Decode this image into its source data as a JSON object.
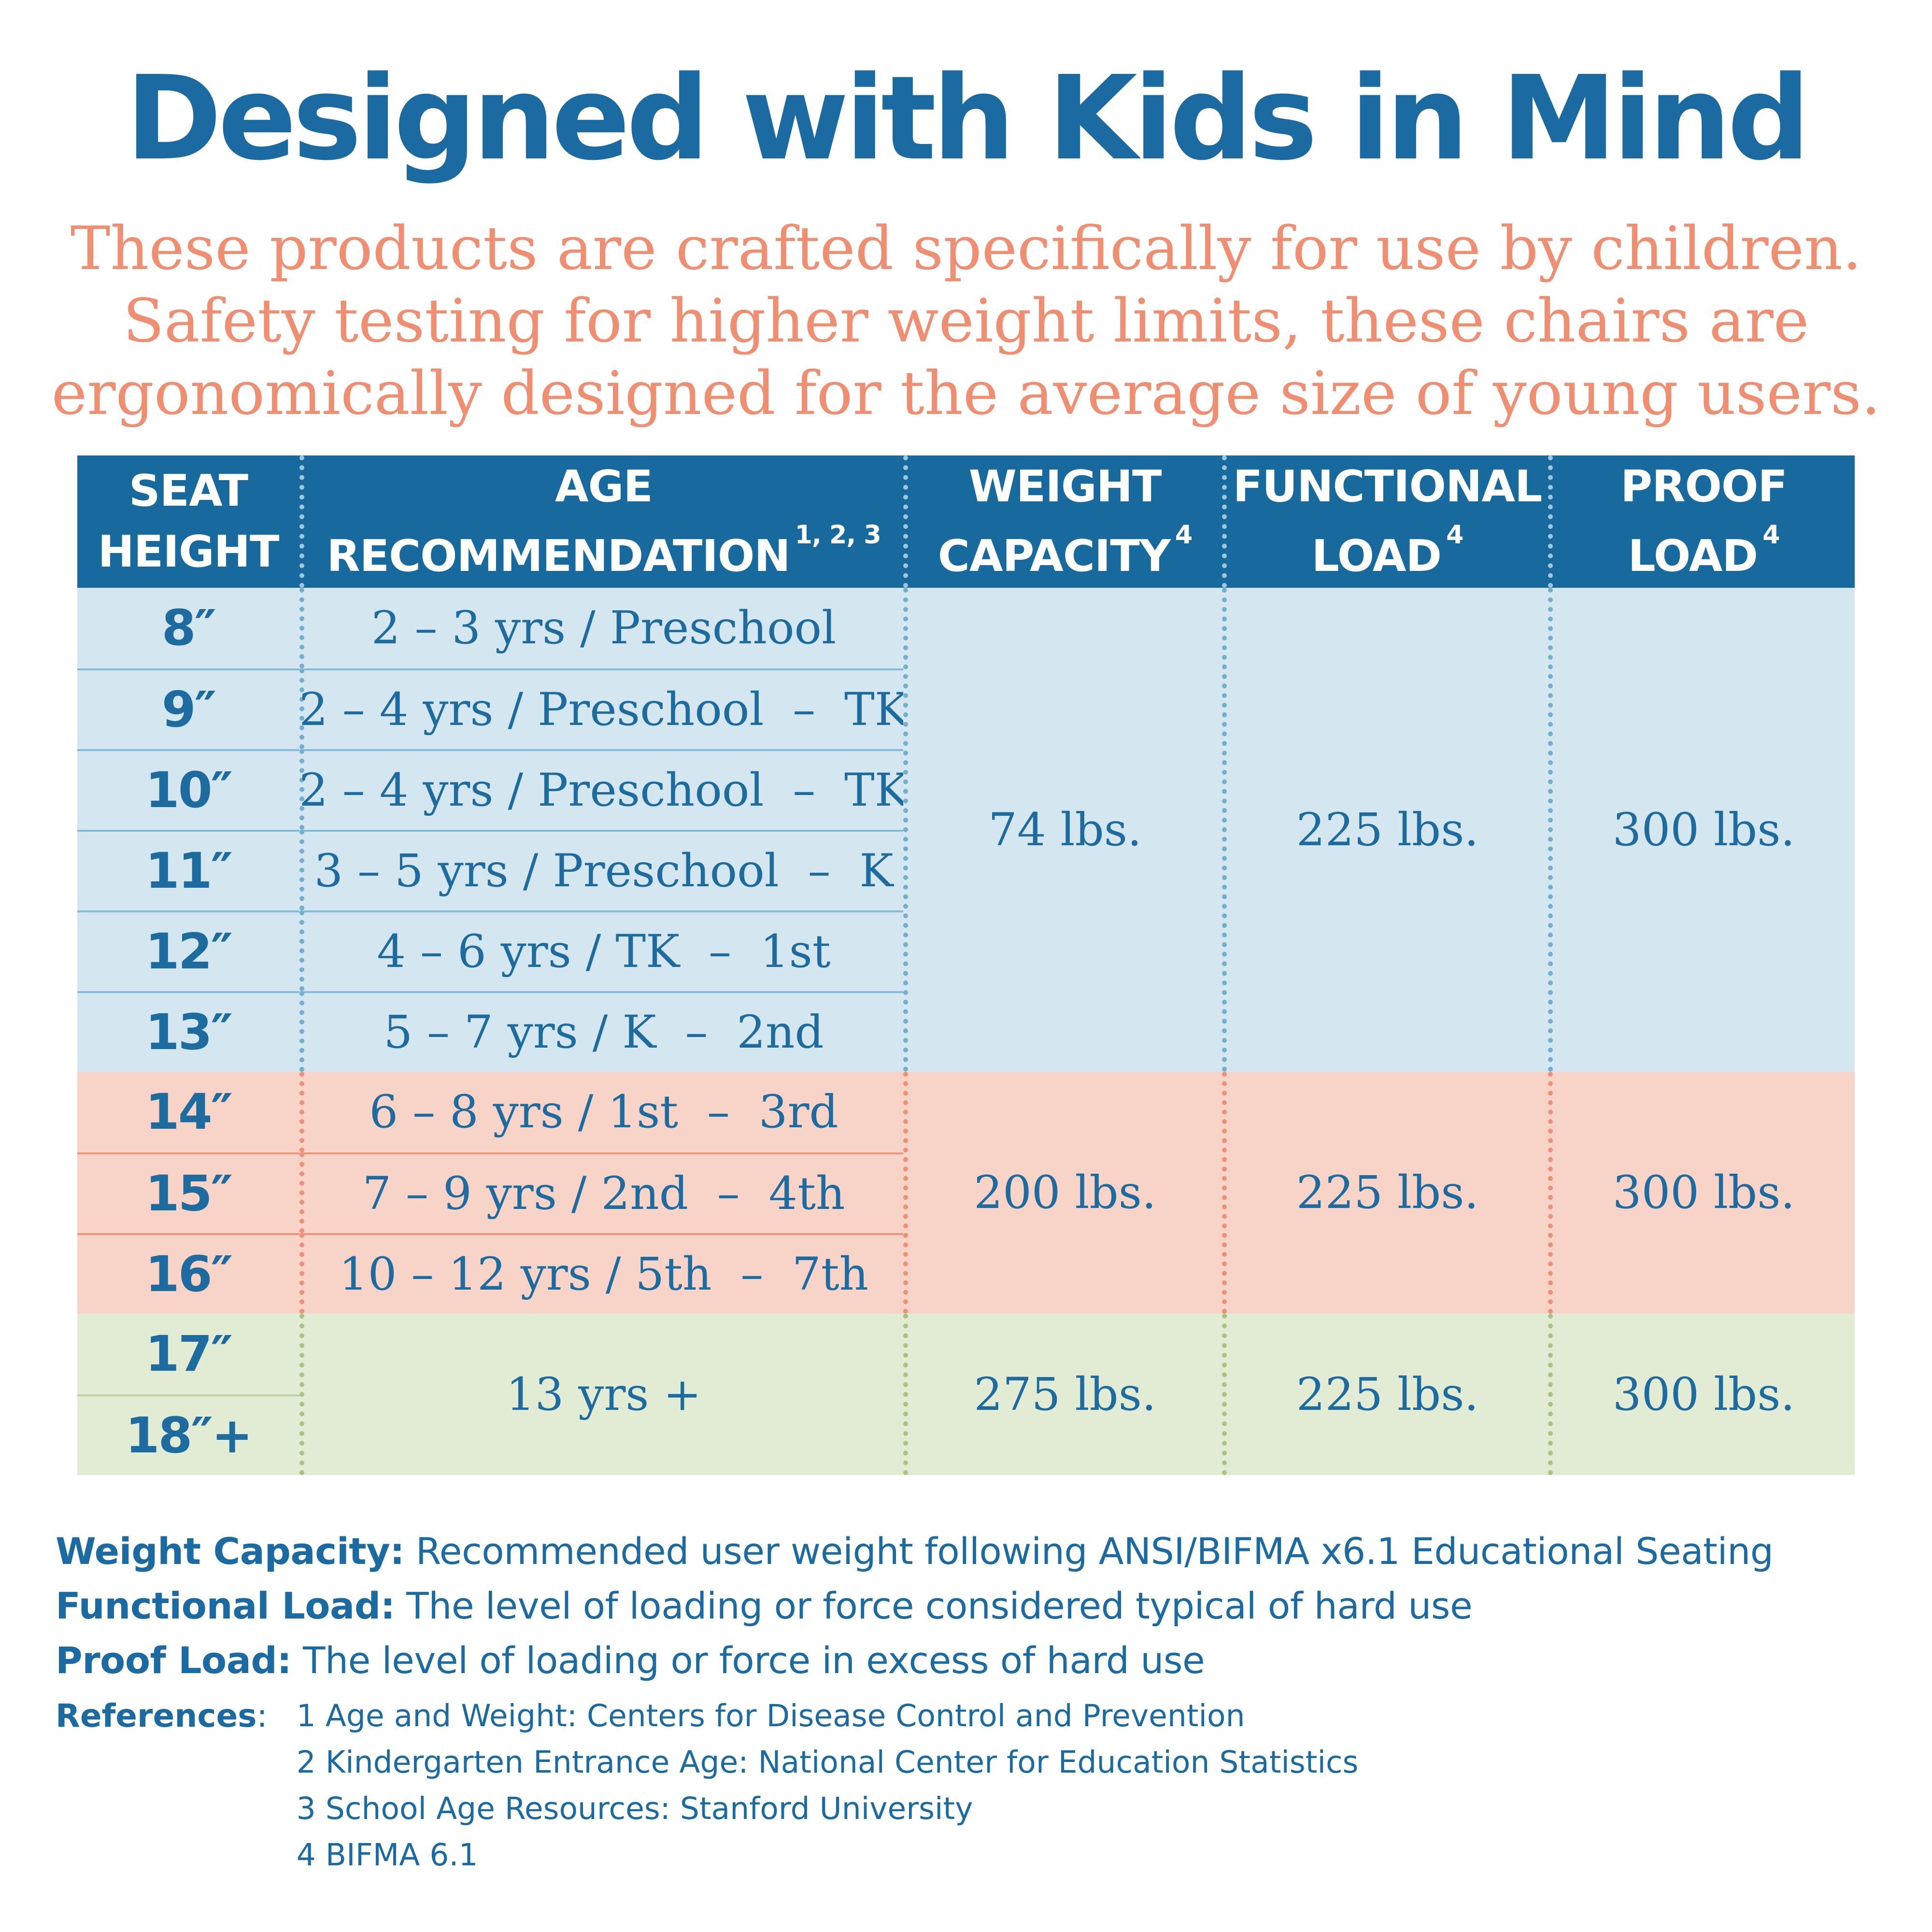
{
  "title": "Designed with Kids in Mind",
  "subtitle": {
    "line1": "These products are crafted specifically for use by children.",
    "line2": "Safety testing for higher weight limits, these chairs are",
    "line3": "ergonomically designed for the average size of young users."
  },
  "table": {
    "headers": [
      {
        "line1": "SEAT",
        "line2": "HEIGHT",
        "sup": ""
      },
      {
        "line1": "AGE",
        "line2": "RECOMMENDATION",
        "sup": "1, 2, 3"
      },
      {
        "line1": "WEIGHT",
        "line2": "CAPACITY",
        "sup": "4"
      },
      {
        "line1": "FUNCTIONAL",
        "line2": "LOAD",
        "sup": "4"
      },
      {
        "line1": "PROOF",
        "line2": "LOAD",
        "sup": "4"
      }
    ],
    "seat_heights": [
      "8″",
      "9″",
      "10″",
      "11″",
      "12″",
      "13″",
      "14″",
      "15″",
      "16″",
      "17″",
      "18″+"
    ],
    "ages": [
      "2 – 3 yrs / Preschool",
      "2 – 4 yrs / Preschool  –  TK",
      "2 – 4 yrs / Preschool  –  TK",
      "3 – 5 yrs / Preschool  –  K",
      "4 – 6 yrs / TK  –  1st",
      "5 – 7 yrs / K  –  2nd",
      "6 – 8 yrs / 1st  –  3rd",
      "7 – 9 yrs / 2nd  –  4th",
      "10 – 12 yrs / 5th  –  7th"
    ],
    "groups": [
      {
        "section": "blue",
        "rows": "8–13 inch",
        "weight_capacity": "74 lbs.",
        "functional_load": "225 lbs.",
        "proof_load": "300 lbs."
      },
      {
        "section": "pink",
        "rows": "14–16 inch",
        "weight_capacity": "200 lbs.",
        "functional_load": "225 lbs.",
        "proof_load": "300 lbs."
      },
      {
        "section": "green",
        "rows": "17–18+ inch",
        "age": "13 yrs +",
        "weight_capacity": "275 lbs.",
        "functional_load": "225 lbs.",
        "proof_load": "300 lbs."
      }
    ]
  },
  "definitions": [
    {
      "term": "Weight Capacity:",
      "text": " Recommended user weight following ANSI/BIFMA x6.1 Educational Seating"
    },
    {
      "term": "Functional Load:",
      "text": " The level of loading or force considered typical of hard use"
    },
    {
      "term": "Proof Load:",
      "text": " The level of loading or force in excess of hard use"
    }
  ],
  "references": {
    "label": "References",
    "colon": ":",
    "items": [
      "1 Age and Weight: Centers for Disease Control and Prevention",
      "2 Kindergarten Entrance Age: National Center for Education Statistics",
      "3 School Age Resources: Stanford University",
      "4 BIFMA 6.1"
    ]
  },
  "colors": {
    "brand-blue": "#1b6aa1",
    "header-blue": "#17699e",
    "table-text-blue": "#1d6b9f",
    "salmon-text": "#ef8e71",
    "light-blue-bg": "#d4e6ef",
    "pink-bg": "#f8d3c8",
    "green-bg": "#e2ecd5",
    "blue-dot": "#74aecd",
    "header-dot": "#9dc7dc",
    "pink-dot": "#ee9078",
    "green-dot": "#a9c383",
    "blue-line": "#85bad4",
    "pink-line": "#ec9478",
    "green-line": "#bfd3a1"
  }
}
